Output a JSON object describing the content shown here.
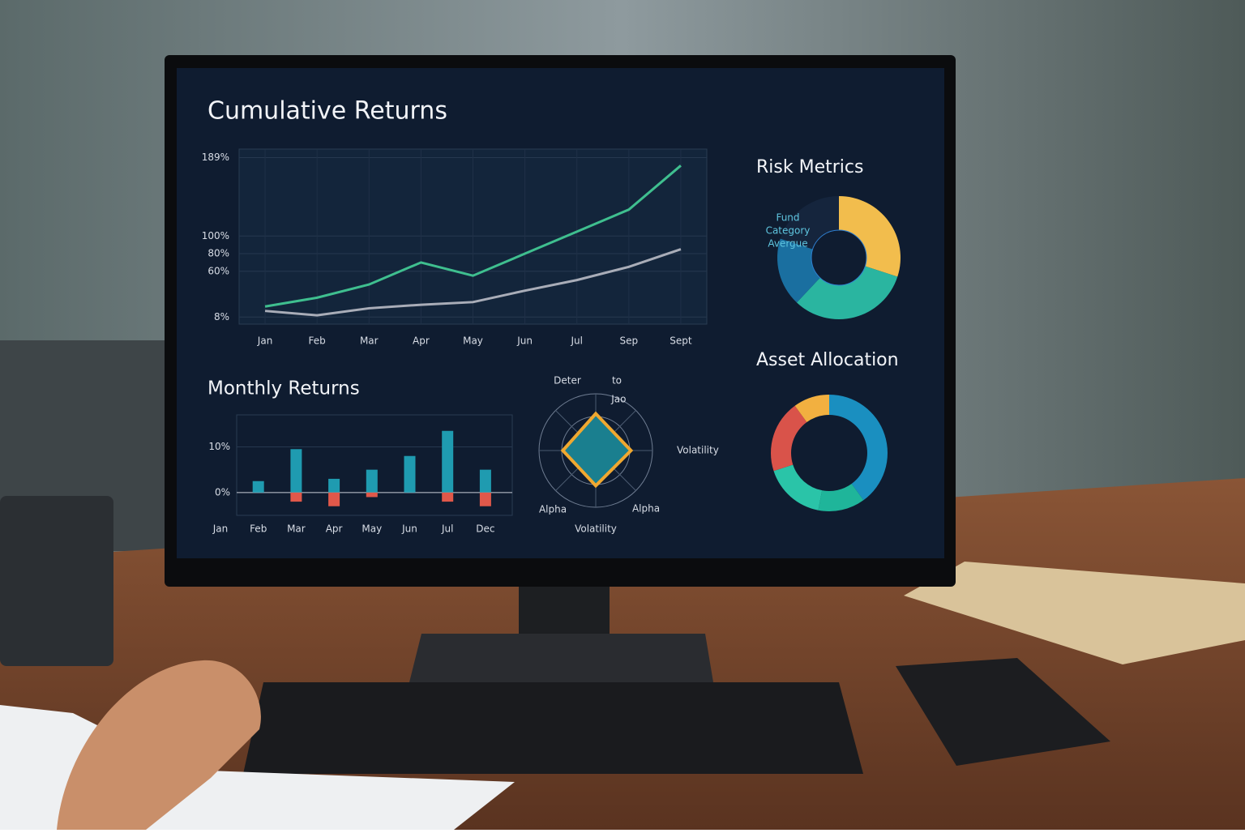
{
  "chart_data": [
    {
      "type": "line",
      "title": "Cumulative Returns",
      "categories": [
        "Jan",
        "Feb",
        "Mar",
        "Apr",
        "May",
        "Jun",
        "Jul",
        "Sep",
        "Sept"
      ],
      "series": [
        {
          "color": "#3fbf8f",
          "values": [
            20,
            30,
            45,
            70,
            55,
            80,
            105,
            130,
            180
          ]
        },
        {
          "color": "#a9adb8",
          "values": [
            15,
            10,
            18,
            22,
            25,
            38,
            50,
            65,
            85
          ]
        }
      ],
      "ylim": [
        0,
        195
      ],
      "yticks": [
        {
          "value": 8,
          "label": "8%"
        },
        {
          "value": 60,
          "label": "60%"
        },
        {
          "value": 80,
          "label": "80%"
        },
        {
          "value": 100,
          "label": "100%"
        },
        {
          "value": 189,
          "label": "189%"
        }
      ],
      "grid": true
    },
    {
      "type": "bar",
      "title": "Monthly Returns",
      "categories": [
        "Jan",
        "Feb",
        "Mar",
        "Apr",
        "May",
        "Jun",
        "Jul",
        "Dec"
      ],
      "series": [
        {
          "color": "#1f9bb0",
          "values": [
            null,
            2.5,
            9.5,
            3,
            5,
            8,
            13.5,
            5
          ]
        },
        {
          "color": "#e0584a",
          "values": [
            null,
            null,
            -2,
            -3,
            -1,
            null,
            -2,
            -3
          ]
        }
      ],
      "ylim": [
        -5,
        17
      ],
      "yticks": [
        {
          "value": 0,
          "label": "0%"
        },
        {
          "value": 10,
          "label": "10%"
        }
      ]
    },
    {
      "type": "radar",
      "categories": [
        "Jao",
        "Volatility",
        "Volatility",
        "Alpha"
      ],
      "values": [
        0.65,
        0.62,
        0.62,
        0.58
      ],
      "color": "#f0a830",
      "rlim": [
        0,
        1
      ],
      "annotations": [
        "Deter",
        "to",
        "Alpha"
      ]
    },
    {
      "type": "pie",
      "title": "Risk Metrics",
      "values": [
        30,
        32,
        18,
        20
      ],
      "colors": [
        "#f2bd4d",
        "#2ab5a0",
        "#1a6fa0",
        "#15253d"
      ],
      "annotations": [
        "Fund",
        "Category",
        "Avergue"
      ]
    },
    {
      "type": "pie",
      "title": "Asset Allocation",
      "values": [
        40,
        13,
        17,
        20,
        10
      ],
      "colors": [
        "#1a8fc0",
        "#1fb59a",
        "#2ac4a8",
        "#d9534a",
        "#f2b040"
      ]
    }
  ]
}
